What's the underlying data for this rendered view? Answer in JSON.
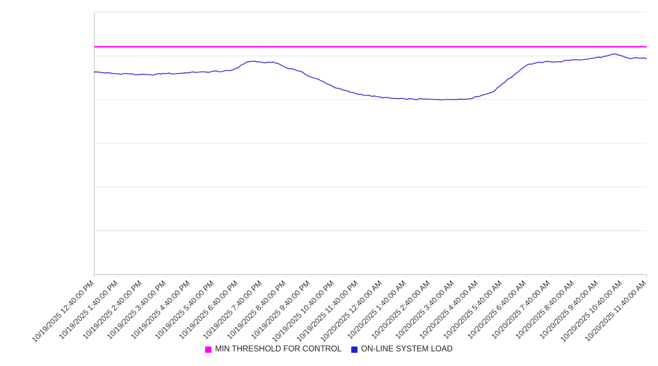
{
  "chart_data": {
    "type": "line",
    "title": "",
    "legend_position": "bottom",
    "grid": true,
    "gridline_count": 6,
    "ylim": [
      0,
      100
    ],
    "y_tick_labels": [],
    "x_tick_labels": [
      "10/19/2025 12:40:00 PM",
      "10/19/2025 1:40:00 PM",
      "10/19/2025 2:40:00 PM",
      "10/19/2025 3:40:00 PM",
      "10/19/2025 4:40:00 PM",
      "10/19/2025 5:40:00 PM",
      "10/19/2025 6:40:00 PM",
      "10/19/2025 7:40:00 PM",
      "10/19/2025 8:40:00 PM",
      "10/19/2025 9:40:00 PM",
      "10/19/2025 10:40:00 PM",
      "10/19/2025 11:40:00 PM",
      "10/20/2025 12:40:00 AM",
      "10/20/2025 1:40:00 AM",
      "10/20/2025 2:40:00 AM",
      "10/20/2025 3:40:00 AM",
      "10/20/2025 4:40:00 AM",
      "10/20/2025 5:40:00 AM",
      "10/20/2025 6:40:00 AM",
      "10/20/2025 7:40:00 AM",
      "10/20/2025 8:40:00 AM",
      "10/20/2025 9:40:00 AM",
      "10/20/2025 10:40:00 AM",
      "10/20/2025 11:40:00 AM"
    ],
    "series": [
      {
        "name": "MIN THRESHOLD FOR CONTROL",
        "type": "threshold-line",
        "color": "#ff00ff",
        "value": 86.8
      },
      {
        "name": "ON-LINE SYSTEM LOAD",
        "type": "line",
        "color": "#2222d2",
        "values": [
          77.2,
          77.0,
          76.7,
          76.5,
          76.6,
          76.3,
          76.2,
          76.0,
          76.4,
          76.7,
          76.5,
          76.8,
          77.0,
          77.2,
          77.1,
          77.5,
          77.4,
          77.7,
          79.0,
          81.0,
          81.3,
          80.7,
          81.0,
          80.4,
          78.8,
          78.2,
          77.0,
          75.4,
          74.3,
          72.9,
          71.4,
          70.4,
          69.5,
          68.8,
          68.3,
          67.9,
          67.5,
          67.2,
          67.0,
          66.9,
          66.8,
          66.9,
          66.7,
          66.8,
          66.6,
          66.9,
          66.8,
          67.1,
          68.0,
          68.8,
          70.0,
          72.8,
          75.0,
          77.5,
          79.9,
          80.5,
          80.9,
          81.2,
          81.0,
          81.5,
          82.0,
          81.8,
          82.3,
          82.8,
          83.2,
          84.0,
          83.2,
          82.2,
          82.7,
          82.3
        ]
      }
    ]
  }
}
